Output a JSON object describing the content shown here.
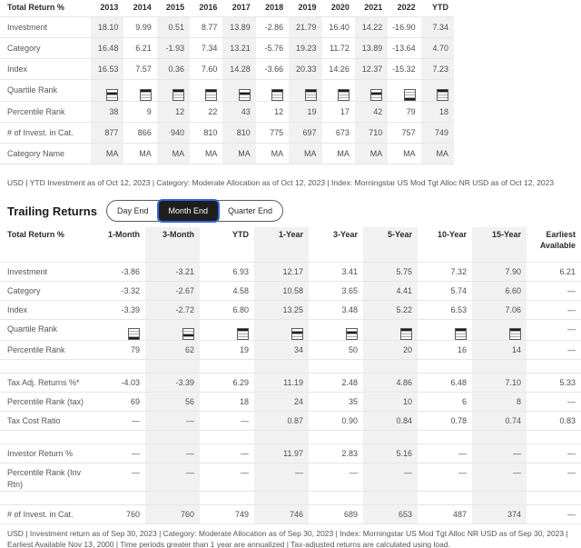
{
  "colors": {
    "accent_focus": "#3665d6",
    "selected_toggle_bg": "#1e1e1e",
    "stripe": "#f1f1f1",
    "border": "#e6e6e6",
    "header_text": "#2b2b2b",
    "body_text": "#4e4e4e"
  },
  "annual": {
    "footnote": "USD | YTD Investment as of Oct 12, 2023 | Category: Moderate Allocation as of Oct 12, 2023 | Index: Morningstar US Mod Tgt Alloc NR USD as of Oct 12, 2023",
    "table": {
      "corner_label": "Total Return %",
      "empty_marker": "—",
      "columns": [
        "2013",
        "2014",
        "2015",
        "2016",
        "2017",
        "2018",
        "2019",
        "2020",
        "2021",
        "2022",
        "YTD"
      ],
      "rows": [
        {
          "label": "Investment",
          "type": "values",
          "values": [
            "18.10",
            "9.99",
            "0.51",
            "8.77",
            "13.89",
            "-2.86",
            "21.79",
            "16.40",
            "14.22",
            "-16.90",
            "7.34"
          ]
        },
        {
          "label": "Category",
          "type": "values",
          "values": [
            "16.48",
            "6.21",
            "-1.93",
            "7.34",
            "13.21",
            "-5.76",
            "19.23",
            "11.72",
            "13.89",
            "-13.64",
            "4.70"
          ]
        },
        {
          "label": "Index",
          "type": "values",
          "values": [
            "16.53",
            "7.57",
            "0.36",
            "7.60",
            "14.28",
            "-3.66",
            "20.33",
            "14.26",
            "12.37",
            "-15.32",
            "7.23"
          ]
        },
        {
          "label": "Quartile Rank",
          "type": "quartile",
          "values": [
            2,
            1,
            1,
            1,
            2,
            1,
            1,
            1,
            2,
            4,
            1
          ]
        },
        {
          "label": "Percentile Rank",
          "type": "values",
          "values": [
            "38",
            "9",
            "12",
            "22",
            "43",
            "12",
            "19",
            "17",
            "42",
            "79",
            "18"
          ]
        },
        {
          "label": "# of Invest. in Cat.",
          "type": "values",
          "values": [
            "877",
            "866",
            "940",
            "810",
            "810",
            "775",
            "697",
            "673",
            "710",
            "757",
            "749"
          ]
        },
        {
          "label": "Category Name",
          "type": "values",
          "values": [
            "MA",
            "MA",
            "MA",
            "MA",
            "MA",
            "MA",
            "MA",
            "MA",
            "MA",
            "MA",
            "MA"
          ]
        }
      ]
    }
  },
  "trailing": {
    "title": "Trailing Returns",
    "toggle": {
      "options": [
        "Day End",
        "Month End",
        "Quarter End"
      ],
      "selected": "Month End"
    },
    "footnote": "USD | Investment return as of Sep 30, 2023 | Category: Moderate Allocation as of Sep 30, 2023 | Index: Morningstar US Mod Tgt Alloc NR USD as of Sep 30, 2023 | Earliest Available Nov 13, 2000 | Time periods greater than 1 year are annualized | Tax-adjusted returns are calculated using load.",
    "table": {
      "corner_label": "Total Return %",
      "empty_marker": "—",
      "columns": [
        "1-Month",
        "3-Month",
        "YTD",
        "1-Year",
        "3-Year",
        "5-Year",
        "10-Year",
        "15-Year",
        "Earliest Available"
      ],
      "rows": [
        {
          "label": "Investment",
          "type": "values",
          "values": [
            "-3.86",
            "-3.21",
            "6.93",
            "12.17",
            "3.41",
            "5.75",
            "7.32",
            "7.90",
            "6.21"
          ]
        },
        {
          "label": "Category",
          "type": "values",
          "values": [
            "-3.32",
            "-2.67",
            "4.58",
            "10.58",
            "3.65",
            "4.41",
            "5.74",
            "6.60",
            "—"
          ]
        },
        {
          "label": "Index",
          "type": "values",
          "values": [
            "-3.39",
            "-2.72",
            "6.80",
            "13.25",
            "3.48",
            "5.22",
            "6.53",
            "7.06",
            "—"
          ]
        },
        {
          "label": "Quartile Rank",
          "type": "quartile",
          "values": [
            4,
            3,
            1,
            2,
            2,
            1,
            1,
            1,
            null
          ]
        },
        {
          "label": "Percentile Rank",
          "type": "values",
          "values": [
            "79",
            "62",
            "19",
            "34",
            "50",
            "20",
            "16",
            "14",
            "—"
          ]
        },
        {
          "type": "spacer"
        },
        {
          "label": "Tax Adj. Returns %*",
          "type": "values",
          "values": [
            "-4.03",
            "-3.39",
            "6.29",
            "11.19",
            "2.48",
            "4.86",
            "6.48",
            "7.10",
            "5.33"
          ]
        },
        {
          "label": "Percentile Rank (tax)",
          "type": "values",
          "values": [
            "69",
            "56",
            "18",
            "24",
            "35",
            "10",
            "6",
            "8",
            "—"
          ]
        },
        {
          "label": "Tax Cost Ratio",
          "type": "values",
          "values": [
            "—",
            "—",
            "—",
            "0.87",
            "0.90",
            "0.84",
            "0.78",
            "0.74",
            "0.83"
          ]
        },
        {
          "type": "spacer"
        },
        {
          "label": "Investor Return %",
          "type": "values",
          "values": [
            "—",
            "—",
            "—",
            "11.97",
            "2.83",
            "5.16",
            "—",
            "—",
            "—"
          ]
        },
        {
          "label": "Percentile Rank (Inv Rtn)",
          "type": "values",
          "values": [
            "—",
            "—",
            "—",
            "—",
            "—",
            "—",
            "—",
            "—",
            "—"
          ]
        },
        {
          "type": "spacer"
        },
        {
          "label": "# of Invest. in Cat.",
          "type": "values",
          "values": [
            "760",
            "760",
            "749",
            "746",
            "689",
            "653",
            "487",
            "374",
            "—"
          ]
        }
      ]
    }
  }
}
